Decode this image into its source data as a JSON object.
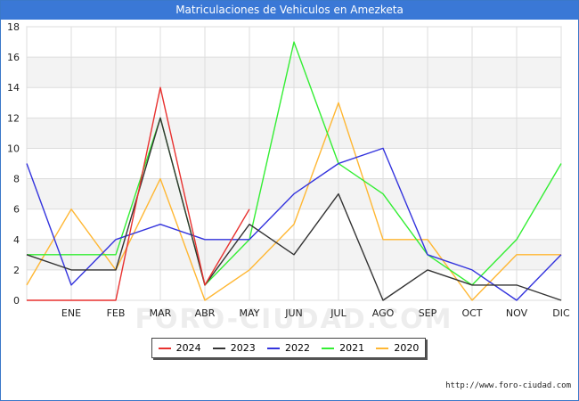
{
  "chart_data": {
    "type": "line",
    "title": "Matriculaciones de Vehiculos en Amezketa",
    "xlabel": "",
    "ylabel": "",
    "categories": [
      "",
      "ENE",
      "FEB",
      "MAR",
      "ABR",
      "MAY",
      "JUN",
      "JUL",
      "AGO",
      "SEP",
      "OCT",
      "NOV",
      "DIC"
    ],
    "ylim": [
      0,
      18
    ],
    "yticks": [
      0,
      2,
      4,
      6,
      8,
      10,
      12,
      14,
      16,
      18
    ],
    "grid": true,
    "legend_position": "bottom-center",
    "series": [
      {
        "name": "2024",
        "color": "#e8312f",
        "values": [
          0,
          0,
          0,
          14,
          1,
          6,
          null,
          null,
          null,
          null,
          null,
          null,
          null
        ]
      },
      {
        "name": "2023",
        "color": "#333333",
        "values": [
          3,
          2,
          2,
          12,
          1,
          5,
          3,
          7,
          0,
          2,
          1,
          1,
          0
        ]
      },
      {
        "name": "2022",
        "color": "#3333dd",
        "values": [
          9,
          1,
          4,
          5,
          4,
          4,
          7,
          9,
          10,
          3,
          2,
          0,
          3
        ]
      },
      {
        "name": "2021",
        "color": "#33ee33",
        "values": [
          3,
          3,
          3,
          12,
          1,
          4,
          17,
          9,
          7,
          3,
          1,
          4,
          9
        ]
      },
      {
        "name": "2020",
        "color": "#ffb733",
        "values": [
          1,
          6,
          2,
          8,
          0,
          2,
          5,
          13,
          4,
          4,
          0,
          3,
          3
        ]
      }
    ]
  },
  "watermark": "FORO-CIUDAD.COM",
  "source_url": "http://www.foro-ciudad.com"
}
